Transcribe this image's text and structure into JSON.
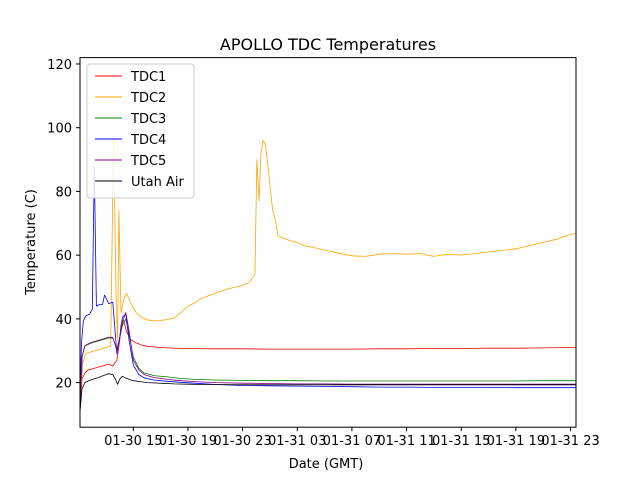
{
  "chart_data": {
    "type": "line",
    "title": "APOLLO TDC Temperatures",
    "xlabel": "Date (GMT)",
    "ylabel": "Temperature (C)",
    "x_unit": "hours since 2020-01-30 00:00 GMT",
    "xlim": [
      11.1,
      47.4
    ],
    "ylim": [
      6,
      122
    ],
    "xticks": [
      {
        "x": 15,
        "label": "01-30 15"
      },
      {
        "x": 19,
        "label": "01-30 19"
      },
      {
        "x": 23,
        "label": "01-30 23"
      },
      {
        "x": 27,
        "label": "01-31 03"
      },
      {
        "x": 31,
        "label": "01-31 07"
      },
      {
        "x": 35,
        "label": "01-31 11"
      },
      {
        "x": 39,
        "label": "01-31 15"
      },
      {
        "x": 43,
        "label": "01-31 19"
      },
      {
        "x": 47,
        "label": "01-31 23"
      }
    ],
    "yticks": [
      20,
      40,
      60,
      80,
      100,
      120
    ],
    "legend_position": "top-left",
    "series": [
      {
        "name": "TDC1",
        "color": "#ff0000",
        "x": [
          11.1,
          11.25,
          11.45,
          11.7,
          12.0,
          12.4,
          12.8,
          13.2,
          13.5,
          13.8,
          14.0,
          14.1,
          14.3,
          14.5,
          14.8,
          15.2,
          15.6,
          16.0,
          17.0,
          18.0,
          19.0,
          21.0,
          23.0,
          25.0,
          27.0,
          29.0,
          31.0,
          33.0,
          35.0,
          37.0,
          39.0,
          41.0,
          43.0,
          45.0,
          47.0,
          47.4
        ],
        "y": [
          11,
          21,
          23,
          24,
          24.3,
          24.8,
          25.3,
          25.8,
          25.2,
          27.0,
          33.0,
          38.0,
          39.5,
          36.0,
          33.5,
          32.5,
          31.8,
          31.4,
          31.0,
          30.8,
          30.7,
          30.6,
          30.6,
          30.5,
          30.5,
          30.5,
          30.5,
          30.6,
          30.6,
          30.7,
          30.7,
          30.8,
          30.8,
          30.9,
          31.0,
          31.0
        ]
      },
      {
        "name": "TDC2",
        "color": "#ffa500",
        "x": [
          11.1,
          11.3,
          11.5,
          11.8,
          12.2,
          12.6,
          13.0,
          13.35,
          13.55,
          13.75,
          13.85,
          13.95,
          14.1,
          14.3,
          14.5,
          14.8,
          15.2,
          15.6,
          16.0,
          16.5,
          17.0,
          17.5,
          18.0,
          18.5,
          19.0,
          19.5,
          20.0,
          21.0,
          22.0,
          23.0,
          23.5,
          23.9,
          24.05,
          24.2,
          24.35,
          24.5,
          24.65,
          24.8,
          25.0,
          25.2,
          25.4,
          25.6,
          26.0,
          26.5,
          27.0,
          27.5,
          28.0,
          29.0,
          30.0,
          31.0,
          32.0,
          33.0,
          34.0,
          35.0,
          36.0,
          37.0,
          38.0,
          39.0,
          40.0,
          41.0,
          42.0,
          43.0,
          44.0,
          45.0,
          46.0,
          47.0,
          47.4
        ],
        "y": [
          11,
          26,
          29,
          29.5,
          30.0,
          30.5,
          31.0,
          31.5,
          97,
          45,
          33.5,
          74,
          42,
          46,
          48,
          45,
          42,
          40.5,
          39.7,
          39.4,
          39.5,
          39.8,
          40.3,
          42,
          44,
          45,
          46.5,
          48,
          49.5,
          50.5,
          51.5,
          54,
          90,
          77,
          92,
          96,
          95,
          90,
          82,
          74,
          71,
          66,
          65.3,
          64.5,
          64.0,
          63.0,
          62.6,
          61.6,
          60.6,
          59.8,
          59.6,
          60.3,
          60.5,
          60.3,
          60.5,
          59.6,
          60.3,
          60.0,
          60.5,
          61.0,
          61.5,
          62.0,
          63.0,
          64.0,
          65.0,
          66.5,
          66.8
        ]
      },
      {
        "name": "TDC3",
        "color": "#008000",
        "x": [
          11.1,
          11.25,
          11.45,
          11.7,
          12.0,
          12.4,
          12.8,
          13.2,
          13.5,
          13.8,
          14.0,
          14.2,
          14.45,
          14.7,
          15.0,
          15.4,
          15.8,
          16.5,
          17.5,
          18.5,
          19.5,
          21.0,
          23.0,
          25.0,
          27.0,
          29.0,
          31.0,
          33.0,
          35.0,
          37.0,
          39.0,
          41.0,
          43.0,
          45.0,
          47.0,
          47.4
        ],
        "y": [
          11,
          28,
          31.5,
          32,
          32.5,
          33.0,
          33.5,
          34.0,
          34.0,
          30.5,
          34.0,
          38.0,
          40.0,
          35.0,
          28.0,
          24.5,
          23.0,
          22.2,
          21.8,
          21.3,
          21.0,
          20.8,
          20.7,
          20.6,
          20.6,
          20.5,
          20.5,
          20.5,
          20.5,
          20.5,
          20.5,
          20.5,
          20.5,
          20.6,
          20.6,
          20.6
        ]
      },
      {
        "name": "TDC4",
        "color": "#0000ff",
        "x": [
          11.1,
          11.2,
          11.35,
          11.55,
          11.8,
          12.0,
          12.15,
          12.3,
          12.55,
          12.75,
          12.9,
          13.2,
          13.5,
          13.8,
          14.0,
          14.2,
          14.45,
          14.7,
          15.0,
          15.4,
          15.8,
          16.5,
          17.5,
          18.5,
          19.5,
          21.0,
          23.0,
          25.0,
          27.0,
          29.0,
          31.0,
          33.0,
          35.0,
          37.0,
          39.0,
          41.0,
          43.0,
          45.0,
          47.0,
          47.4
        ],
        "y": [
          11,
          32,
          39.5,
          41.0,
          41.5,
          43.0,
          88,
          44.0,
          44.5,
          44.5,
          47.5,
          44.8,
          45.2,
          29.0,
          34.0,
          40.5,
          41.5,
          33.0,
          25.5,
          22.5,
          21.5,
          20.8,
          20.4,
          20.1,
          19.8,
          19.4,
          19.1,
          19.0,
          18.9,
          18.8,
          18.7,
          18.6,
          18.6,
          18.5,
          18.5,
          18.5,
          18.4,
          18.4,
          18.4,
          18.4
        ]
      },
      {
        "name": "TDC5",
        "color": "#800080",
        "x": [
          11.1,
          11.25,
          11.45,
          11.7,
          12.0,
          12.4,
          12.8,
          13.2,
          13.5,
          13.8,
          14.0,
          14.2,
          14.45,
          14.7,
          15.0,
          15.4,
          15.8,
          16.5,
          17.5,
          18.5,
          19.5,
          21.0,
          23.0,
          25.0,
          27.0,
          29.0,
          31.0,
          33.0,
          35.0,
          37.0,
          39.0,
          41.0,
          43.0,
          45.0,
          47.0,
          47.4
        ],
        "y": [
          11,
          28,
          31.5,
          32.2,
          32.7,
          33.2,
          33.7,
          34.2,
          34.2,
          30.0,
          33.5,
          39.0,
          42.0,
          36.0,
          27.0,
          24.0,
          22.5,
          21.6,
          21.0,
          20.6,
          20.3,
          20.0,
          19.8,
          19.7,
          19.6,
          19.6,
          19.5,
          19.5,
          19.5,
          19.5,
          19.5,
          19.5,
          19.5,
          19.5,
          19.5,
          19.5
        ]
      },
      {
        "name": "Utah Air",
        "color": "#000000",
        "x": [
          11.1,
          11.25,
          11.45,
          11.7,
          12.0,
          12.4,
          12.8,
          13.2,
          13.5,
          13.7,
          13.85,
          14.0,
          14.2,
          14.4,
          14.7,
          15.0,
          15.5,
          16.0,
          17.0,
          18.0,
          19.0,
          20.0,
          21.0,
          23.0,
          25.0,
          27.0,
          29.0,
          31.0,
          33.0,
          35.0,
          37.0,
          39.0,
          41.0,
          43.0,
          45.0,
          47.0,
          47.4
        ],
        "y": [
          11,
          18,
          20.0,
          20.5,
          21.0,
          21.5,
          22.2,
          22.8,
          22.5,
          21.0,
          19.5,
          21.0,
          22.0,
          21.5,
          21.0,
          20.6,
          20.3,
          20.0,
          19.8,
          19.6,
          19.5,
          19.4,
          19.4,
          19.3,
          19.3,
          19.3,
          19.3,
          19.3,
          19.3,
          19.3,
          19.3,
          19.3,
          19.3,
          19.3,
          19.3,
          19.3,
          19.3
        ]
      }
    ]
  }
}
